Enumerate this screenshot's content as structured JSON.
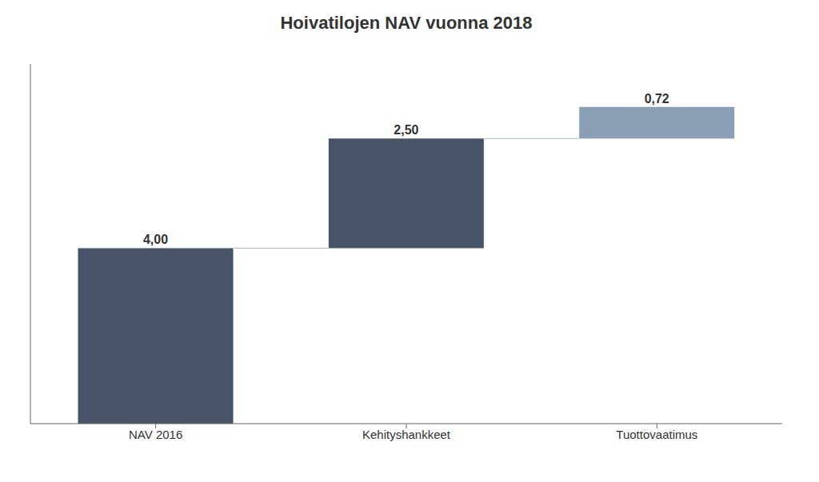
{
  "chart_data": {
    "type": "waterfall",
    "title": "Hoivatilojen NAV vuonna 2018",
    "categories": [
      "NAV 2016",
      "Kehityshankkeet",
      "Tuottovaatimus"
    ],
    "values": [
      4.0,
      2.5,
      0.72
    ],
    "value_labels": [
      "4,00",
      "2,50",
      "0,72"
    ],
    "colors": [
      "#475467",
      "#475467",
      "#8a9eb5"
    ],
    "ylim": [
      0,
      8.2
    ],
    "yticks": [],
    "data_labels": true,
    "tick_labels": "x"
  }
}
